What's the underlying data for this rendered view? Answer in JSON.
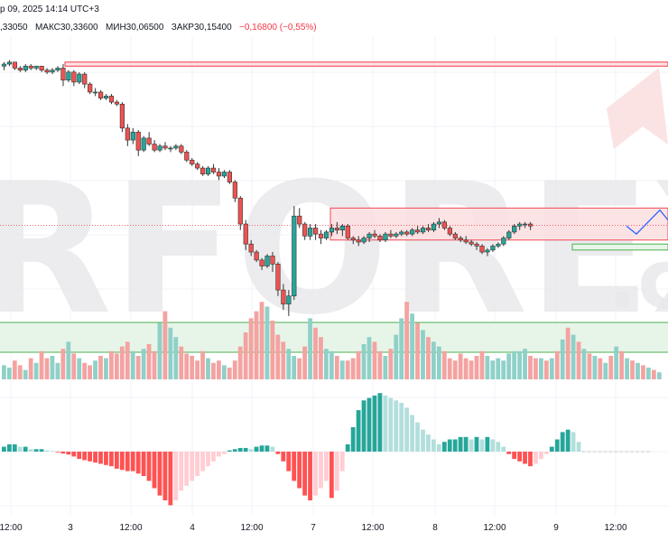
{
  "header": {
    "line1": "р 09, 2025 14:14 UTC+3",
    "ohlc_prefix": ",33050",
    "high": "МАКС30,33600",
    "low": "МИН30,06500",
    "close": "ЗАКР30,15400",
    "change": "−0,16800 (−0,55%)"
  },
  "watermark": {
    "text": "RFOREX",
    "suffix": ".c"
  },
  "colors": {
    "up": "#26a69a",
    "down": "#ef5350",
    "vol_up": "#8fd0c7",
    "vol_down": "#f3a3a1",
    "hist_up_strong": "#26a69a",
    "hist_up_weak": "#b2dfdb",
    "hist_down_strong": "#ff5252",
    "hist_down_weak": "#ffcdd2",
    "zone_red": "#f23645",
    "zone_green": "#4caf50",
    "forecast": "#2962ff"
  },
  "chart_data": [
    {
      "type": "candlestick",
      "title": "",
      "xlabels": [
        "12:00",
        "3",
        "12:00",
        "4",
        "12:00",
        "7",
        "12:00",
        "8",
        "12:00",
        "9",
        "12:00"
      ],
      "last_close": 30.154,
      "candles": [
        [
          30.95,
          30.97,
          30.93,
          30.96
        ],
        [
          30.96,
          30.98,
          30.95,
          30.97
        ],
        [
          30.97,
          30.97,
          30.93,
          30.94
        ],
        [
          30.94,
          30.95,
          30.92,
          30.93
        ],
        [
          30.93,
          30.96,
          30.92,
          30.95
        ],
        [
          30.95,
          30.96,
          30.93,
          30.94
        ],
        [
          30.94,
          30.95,
          30.93,
          30.95
        ],
        [
          30.95,
          30.95,
          30.92,
          30.93
        ],
        [
          30.93,
          30.94,
          30.91,
          30.92
        ],
        [
          30.92,
          30.94,
          30.91,
          30.93
        ],
        [
          30.93,
          30.95,
          30.92,
          30.94
        ],
        [
          30.94,
          30.96,
          30.85,
          30.88
        ],
        [
          30.88,
          30.93,
          30.87,
          30.92
        ],
        [
          30.92,
          30.93,
          30.85,
          30.87
        ],
        [
          30.87,
          30.92,
          30.86,
          30.91
        ],
        [
          30.91,
          30.92,
          30.84,
          30.86
        ],
        [
          30.86,
          30.87,
          30.81,
          30.82
        ],
        [
          30.82,
          30.84,
          30.8,
          30.82
        ],
        [
          30.82,
          30.83,
          30.78,
          30.79
        ],
        [
          30.79,
          30.81,
          30.78,
          30.8
        ],
        [
          30.8,
          30.81,
          30.76,
          30.77
        ],
        [
          30.77,
          30.78,
          30.75,
          30.76
        ],
        [
          30.76,
          30.77,
          30.62,
          30.64
        ],
        [
          30.64,
          30.66,
          30.55,
          30.58
        ],
        [
          30.58,
          30.64,
          30.56,
          30.62
        ],
        [
          30.62,
          30.63,
          30.5,
          30.53
        ],
        [
          30.53,
          30.6,
          30.52,
          30.59
        ],
        [
          30.59,
          30.62,
          30.55,
          30.56
        ],
        [
          30.56,
          30.58,
          30.52,
          30.53
        ],
        [
          30.53,
          30.56,
          30.52,
          30.55
        ],
        [
          30.55,
          30.57,
          30.53,
          30.54
        ],
        [
          30.54,
          30.55,
          30.52,
          30.54
        ],
        [
          30.54,
          30.56,
          30.53,
          30.55
        ],
        [
          30.55,
          30.56,
          30.51,
          30.52
        ],
        [
          30.52,
          30.53,
          30.47,
          30.48
        ],
        [
          30.48,
          30.49,
          30.45,
          30.46
        ],
        [
          30.46,
          30.47,
          30.43,
          30.44
        ],
        [
          30.44,
          30.45,
          30.4,
          30.41
        ],
        [
          30.41,
          30.45,
          30.4,
          30.44
        ],
        [
          30.44,
          30.46,
          30.41,
          30.42
        ],
        [
          30.42,
          30.44,
          30.38,
          30.4
        ],
        [
          30.4,
          30.43,
          30.39,
          30.42
        ],
        [
          30.42,
          30.43,
          30.36,
          30.37
        ],
        [
          30.37,
          30.38,
          30.27,
          30.29
        ],
        [
          30.29,
          30.3,
          30.13,
          30.16
        ],
        [
          30.16,
          30.18,
          30.03,
          30.06
        ],
        [
          30.06,
          30.08,
          30.0,
          30.02
        ],
        [
          30.02,
          30.03,
          29.97,
          29.98
        ],
        [
          29.98,
          29.99,
          29.93,
          29.95
        ],
        [
          29.95,
          30.01,
          29.94,
          30.0
        ],
        [
          30.0,
          30.02,
          29.92,
          29.96
        ],
        [
          29.96,
          29.97,
          29.8,
          29.83
        ],
        [
          29.83,
          29.86,
          29.73,
          29.76
        ],
        [
          29.76,
          29.83,
          29.7,
          29.8
        ],
        [
          29.8,
          30.25,
          29.78,
          30.2
        ],
        [
          30.2,
          30.24,
          30.14,
          30.16
        ],
        [
          30.16,
          30.17,
          30.08,
          30.1
        ],
        [
          30.1,
          30.16,
          30.08,
          30.14
        ],
        [
          30.14,
          30.16,
          30.08,
          30.11
        ],
        [
          30.11,
          30.13,
          30.06,
          30.09
        ],
        [
          30.09,
          30.13,
          30.08,
          30.12
        ],
        [
          30.12,
          30.16,
          30.1,
          30.14
        ],
        [
          30.14,
          30.17,
          30.11,
          30.13
        ],
        [
          30.13,
          30.16,
          30.1,
          30.15
        ],
        [
          30.15,
          30.16,
          30.08,
          30.09
        ],
        [
          30.09,
          30.1,
          30.06,
          30.08
        ],
        [
          30.08,
          30.1,
          30.05,
          30.07
        ],
        [
          30.07,
          30.1,
          30.06,
          30.09
        ],
        [
          30.09,
          30.12,
          30.07,
          30.11
        ],
        [
          30.11,
          30.13,
          30.09,
          30.1
        ],
        [
          30.1,
          30.11,
          30.07,
          30.08
        ],
        [
          30.08,
          30.12,
          30.07,
          30.11
        ],
        [
          30.11,
          30.13,
          30.09,
          30.1
        ],
        [
          30.1,
          30.12,
          30.09,
          30.11
        ],
        [
          30.11,
          30.13,
          30.1,
          30.12
        ],
        [
          30.12,
          30.13,
          30.1,
          30.11
        ],
        [
          30.11,
          30.14,
          30.1,
          30.13
        ],
        [
          30.13,
          30.15,
          30.11,
          30.12
        ],
        [
          30.12,
          30.15,
          30.11,
          30.14
        ],
        [
          30.14,
          30.16,
          30.12,
          30.13
        ],
        [
          30.13,
          30.17,
          30.12,
          30.16
        ],
        [
          30.16,
          30.19,
          30.14,
          30.17
        ],
        [
          30.17,
          30.18,
          30.13,
          30.14
        ],
        [
          30.14,
          30.15,
          30.1,
          30.11
        ],
        [
          30.11,
          30.12,
          30.08,
          30.09
        ],
        [
          30.09,
          30.1,
          30.07,
          30.08
        ],
        [
          30.08,
          30.1,
          30.06,
          30.07
        ],
        [
          30.07,
          30.08,
          30.05,
          30.06
        ],
        [
          30.06,
          30.07,
          30.03,
          30.05
        ],
        [
          30.05,
          30.06,
          30.01,
          30.02
        ],
        [
          30.02,
          30.04,
          30.0,
          30.03
        ],
        [
          30.03,
          30.06,
          30.02,
          30.05
        ],
        [
          30.05,
          30.07,
          30.04,
          30.06
        ],
        [
          30.06,
          30.1,
          30.05,
          30.09
        ],
        [
          30.09,
          30.13,
          30.08,
          30.12
        ],
        [
          30.12,
          30.16,
          30.11,
          30.15
        ],
        [
          30.15,
          30.17,
          30.13,
          30.16
        ],
        [
          30.16,
          30.17,
          30.14,
          30.16
        ],
        [
          30.16,
          30.17,
          30.13,
          30.15
        ]
      ],
      "volume": [
        6,
        5,
        8,
        6,
        4,
        9,
        7,
        12,
        9,
        10,
        7,
        13,
        16,
        11,
        9,
        7,
        6,
        8,
        10,
        9,
        12,
        11,
        14,
        16,
        12,
        10,
        13,
        15,
        12,
        24,
        29,
        22,
        18,
        14,
        11,
        10,
        8,
        12,
        9,
        7,
        8,
        6,
        5,
        8,
        14,
        20,
        26,
        29,
        33,
        31,
        25,
        19,
        16,
        13,
        10,
        9,
        14,
        26,
        22,
        18,
        13,
        12,
        10,
        8,
        8,
        9,
        12,
        15,
        18,
        16,
        12,
        10,
        13,
        19,
        26,
        33,
        28,
        24,
        21,
        18,
        16,
        14,
        12,
        9,
        8,
        11,
        9,
        8,
        10,
        12,
        10,
        8,
        9,
        8,
        11,
        12,
        12,
        13,
        10,
        9,
        9,
        8,
        9,
        12,
        17,
        22,
        19,
        16,
        13,
        11,
        10,
        9,
        7,
        10,
        14,
        12,
        9,
        8,
        7,
        6,
        5,
        4,
        3
      ],
      "histogram": [
        2,
        3,
        3,
        2,
        2,
        1,
        1,
        1,
        0.5,
        0.3,
        -0.3,
        -0.8,
        -1.2,
        -2,
        -3,
        -3.5,
        -4,
        -4.5,
        -5,
        -5.5,
        -6,
        -7,
        -7.5,
        -8,
        -8,
        -9,
        -10,
        -12,
        -15,
        -18,
        -20,
        -22,
        -20,
        -16,
        -14,
        -12,
        -10,
        -8,
        -6,
        -4,
        -2,
        -1,
        0.5,
        1,
        1.5,
        1.5,
        1,
        2,
        2.5,
        2.5,
        2,
        -1,
        -4,
        -8,
        -12,
        -15,
        -18,
        -20,
        -18,
        -15,
        -12,
        -19,
        -16,
        -8,
        3,
        10,
        17,
        21,
        22,
        23,
        24,
        23,
        22,
        21,
        20,
        18,
        15,
        12,
        9,
        7,
        5,
        3,
        4,
        5,
        5,
        6,
        6,
        5,
        6,
        5,
        6,
        5,
        4,
        2,
        -1,
        -3,
        -4,
        -5,
        -6,
        -5,
        -3,
        -1,
        2,
        5,
        8,
        9,
        8,
        4,
        0,
        0,
        0,
        0,
        0,
        0,
        0,
        0,
        0,
        0,
        0,
        0,
        0
      ],
      "zones": [
        {
          "kind": "resistance",
          "top": 30.97,
          "bottom": 30.95,
          "color": "red"
        },
        {
          "kind": "supply",
          "top": 30.24,
          "bottom": 30.08,
          "color": "red"
        },
        {
          "kind": "support",
          "top": 30.06,
          "bottom": 30.03,
          "color": "green"
        },
        {
          "kind": "volume-zone",
          "color": "green"
        }
      ],
      "forecast": [
        30.15,
        30.11,
        30.17,
        30.23,
        30.18
      ]
    }
  ]
}
